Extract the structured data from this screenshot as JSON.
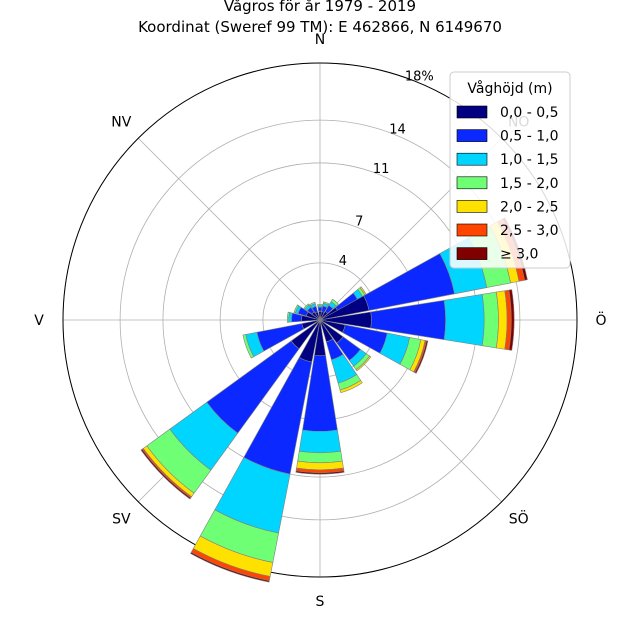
{
  "chart_data": {
    "type": "windrose",
    "title": "Vågros för år 1979 - 2019",
    "subtitle": "Koordinat (Sweref 99 TM): E 462866, N 6149670",
    "direction_labels": [
      "N",
      "NO",
      "Ö",
      "SÖ",
      "S",
      "SV",
      "V",
      "NV"
    ],
    "radial_ticks": [
      {
        "value": 4,
        "label": "4"
      },
      {
        "value": 7,
        "label": "7"
      },
      {
        "value": 11,
        "label": "11"
      },
      {
        "value": 14,
        "label": "14"
      },
      {
        "value": 18,
        "label": "18%"
      }
    ],
    "rmax": 18,
    "unit": "%",
    "legend": {
      "title": "Våghöjd (m)",
      "placement": "top-right",
      "entries": [
        {
          "label": "0,0 - 0,5",
          "color": "#000080"
        },
        {
          "label": "0,5 - 1,0",
          "color": "#0a28ff"
        },
        {
          "label": "1,0 - 1,5",
          "color": "#00d5ff"
        },
        {
          "label": "1,5 - 2,0",
          "color": "#6fff75"
        },
        {
          "label": "2,0 - 2,5",
          "color": "#ffe100"
        },
        {
          "label": "2,5 - 3,0",
          "color": "#ff4500"
        },
        {
          "label": "≥ 3,0",
          "color": "#800000"
        }
      ]
    },
    "sector_width_deg": 18,
    "sectors": [
      {
        "dir_deg": 0,
        "cum": [
          0.6,
          0.9,
          1.0,
          1.1,
          1.1,
          1.1,
          1.1
        ]
      },
      {
        "dir_deg": 20,
        "cum": [
          0.6,
          1.0,
          1.2,
          1.3,
          1.3,
          1.3,
          1.3
        ]
      },
      {
        "dir_deg": 40,
        "cum": [
          0.7,
          1.2,
          1.5,
          1.7,
          1.7,
          1.7,
          1.7
        ]
      },
      {
        "dir_deg": 60,
        "cum": [
          1.4,
          3.0,
          3.4,
          3.6,
          3.7,
          3.7,
          3.7
        ]
      },
      {
        "dir_deg": 70,
        "cum": [
          3.5,
          9.6,
          11.9,
          13.6,
          14.2,
          14.6,
          14.8
        ]
      },
      {
        "dir_deg": 90,
        "cum": [
          3.6,
          8.8,
          11.5,
          12.5,
          13.1,
          13.4,
          13.6
        ]
      },
      {
        "dir_deg": 110,
        "cum": [
          1.8,
          4.8,
          6.4,
          7.2,
          7.5,
          7.6,
          7.7
        ]
      },
      {
        "dir_deg": 135,
        "cum": [
          2.0,
          3.5,
          4.0,
          4.3,
          4.4,
          4.4,
          4.4
        ]
      },
      {
        "dir_deg": 155,
        "cum": [
          1.6,
          2.9,
          4.6,
          5.1,
          5.3,
          5.3,
          5.3
        ]
      },
      {
        "dir_deg": 180,
        "cum": [
          2.5,
          7.8,
          9.3,
          10.0,
          10.5,
          10.7,
          10.8
        ]
      },
      {
        "dir_deg": 200,
        "cum": [
          3.0,
          11.0,
          15.2,
          17.3,
          18.3,
          18.6,
          18.7
        ]
      },
      {
        "dir_deg": 225,
        "cum": [
          2.5,
          9.8,
          13.0,
          15.0,
          15.3,
          15.4,
          15.5
        ]
      },
      {
        "dir_deg": 250,
        "cum": [
          1.3,
          4.5,
          5.3,
          5.5,
          5.5,
          5.5,
          5.5
        ]
      },
      {
        "dir_deg": 275,
        "cum": [
          1.3,
          2.0,
          2.2,
          2.3,
          2.3,
          2.3,
          2.3
        ]
      },
      {
        "dir_deg": 295,
        "cum": [
          1.0,
          1.6,
          1.8,
          1.9,
          1.9,
          1.9,
          1.9
        ]
      },
      {
        "dir_deg": 315,
        "cum": [
          0.7,
          1.1,
          1.3,
          1.4,
          1.4,
          1.4,
          1.4
        ]
      },
      {
        "dir_deg": 335,
        "cum": [
          0.6,
          1.0,
          1.2,
          1.3,
          1.3,
          1.3,
          1.3
        ]
      }
    ]
  }
}
